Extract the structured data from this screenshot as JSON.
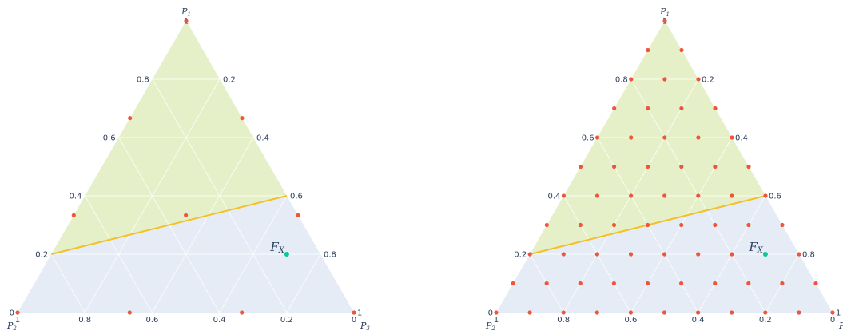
{
  "chart_data": [
    {
      "type": "scatter",
      "subtype": "ternary",
      "axes": {
        "a": "P1",
        "b": "P2",
        "c": "P3"
      },
      "vertex_labels": {
        "top": "P",
        "top_sub": "1",
        "left": "P",
        "left_sub": "2",
        "right": "P",
        "right_sub": "3"
      },
      "a_ticks": [
        "0",
        "0.2",
        "0.4",
        "0.6",
        "0.8",
        "1"
      ],
      "b_ticks": [
        "1",
        "0.8",
        "0.6",
        "0.4",
        "0.2",
        "0"
      ],
      "c_ticks": [
        "0",
        "0.2",
        "0.4",
        "0.6",
        "0.8",
        "1"
      ],
      "grid": true,
      "colors": {
        "background": "#e5ecf6",
        "region": "#e6f0c8",
        "line": "#f5c026",
        "points": "#ef553b",
        "highlight": "#00cc96",
        "text": "#2a3f5f"
      },
      "region_vertices": [
        [
          1,
          0,
          0
        ],
        [
          0.2,
          0.8,
          0
        ],
        [
          0.4,
          0,
          0.6
        ]
      ],
      "boundary_line": [
        [
          0.2,
          0.8,
          0
        ],
        [
          0.4,
          0,
          0.6
        ]
      ],
      "points": [
        [
          1,
          0,
          0
        ],
        [
          0.6667,
          0.3333,
          0
        ],
        [
          0.6667,
          0,
          0.3333
        ],
        [
          0.3333,
          0.6667,
          0
        ],
        [
          0.3333,
          0.3333,
          0.3333
        ],
        [
          0.3333,
          0,
          0.6667
        ],
        [
          0,
          1,
          0
        ],
        [
          0,
          0.6667,
          0.3333
        ],
        [
          0,
          0.3333,
          0.6667
        ],
        [
          0,
          0,
          1
        ]
      ],
      "highlight_point": {
        "label": "F",
        "label_sub": "X",
        "value": [
          0.2,
          0.1,
          0.7
        ]
      }
    },
    {
      "type": "scatter",
      "subtype": "ternary",
      "axes": {
        "a": "P1",
        "b": "P2",
        "c": "P3"
      },
      "vertex_labels": {
        "top": "P",
        "top_sub": "1",
        "left": "P",
        "left_sub": "2",
        "right": "P",
        "right_sub": "3"
      },
      "a_ticks": [
        "0",
        "0.2",
        "0.4",
        "0.6",
        "0.8",
        "1"
      ],
      "b_ticks": [
        "1",
        "0.8",
        "0.6",
        "0.4",
        "0.2",
        "0"
      ],
      "c_ticks": [
        "0",
        "0.2",
        "0.4",
        "0.6",
        "0.8",
        "1"
      ],
      "grid": true,
      "colors": {
        "background": "#e5ecf6",
        "region": "#e6f0c8",
        "line": "#f5c026",
        "points": "#ef553b",
        "highlight": "#00cc96",
        "text": "#2a3f5f"
      },
      "region_vertices": [
        [
          1,
          0,
          0
        ],
        [
          0.2,
          0.8,
          0
        ],
        [
          0.4,
          0,
          0.6
        ]
      ],
      "boundary_line": [
        [
          0.2,
          0.8,
          0
        ],
        [
          0.4,
          0,
          0.6
        ]
      ],
      "points_grid_denominator": 10,
      "highlight_point": {
        "label": "F",
        "label_sub": "X",
        "value": [
          0.2,
          0.1,
          0.7
        ]
      }
    }
  ]
}
